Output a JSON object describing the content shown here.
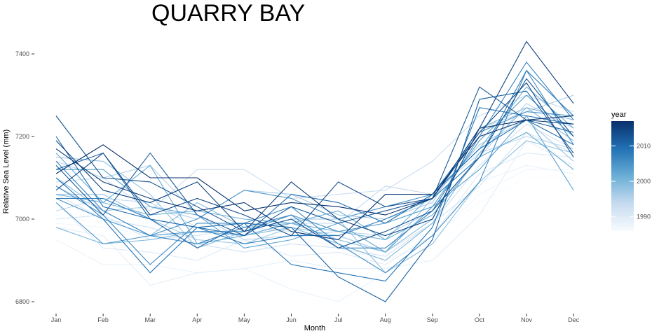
{
  "chart_data": {
    "type": "line",
    "title": "QUARRY BAY",
    "xlabel": "Month",
    "ylabel": "Relative Sea Level (mm)",
    "categories": [
      "Jan",
      "Feb",
      "Mar",
      "Apr",
      "May",
      "Jun",
      "Jul",
      "Aug",
      "Sep",
      "Oct",
      "Nov",
      "Dec"
    ],
    "ylim": [
      6780,
      7440
    ],
    "yticks": [
      6800,
      7000,
      7200,
      7400
    ],
    "legend": {
      "title": "year",
      "placement": "right",
      "range": [
        1986,
        2017
      ],
      "ticks": [
        1990,
        2000,
        2010
      ],
      "colors": [
        "#f7fbff",
        "#c6dbef",
        "#6baed6",
        "#2171b5",
        "#08306b"
      ]
    },
    "series": [
      {
        "year": 1986,
        "values": [
          7010,
          6990,
          6990,
          6980,
          6970,
          6980,
          6960,
          6930,
          6960,
          7040,
          7100,
          7100
        ]
      },
      {
        "year": 1987,
        "values": [
          6990,
          6980,
          6960,
          6960,
          6950,
          6960,
          6930,
          6900,
          6950,
          7060,
          7120,
          7120
        ]
      },
      {
        "year": 1988,
        "values": [
          6950,
          6890,
          6890,
          6870,
          6880,
          6830,
          6800,
          6870,
          6940,
          7090,
          7130,
          7110
        ]
      },
      {
        "year": 1989,
        "values": [
          6980,
          6960,
          6840,
          6870,
          6880,
          6900,
          6880,
          6880,
          6900,
          7010,
          7190,
          7130
        ]
      },
      {
        "year": 1990,
        "values": [
          7040,
          6930,
          6920,
          6900,
          6950,
          6910,
          6920,
          6890,
          6960,
          7110,
          7160,
          7150
        ]
      },
      {
        "year": 1991,
        "values": [
          7000,
          7010,
          6950,
          6960,
          6980,
          6970,
          6950,
          6920,
          6990,
          7080,
          7210,
          7160
        ]
      },
      {
        "year": 1992,
        "values": [
          7060,
          7000,
          6980,
          6940,
          6920,
          6940,
          6930,
          6910,
          6990,
          7130,
          7230,
          7170
        ]
      },
      {
        "year": 1993,
        "values": [
          7090,
          7100,
          7020,
          7120,
          7120,
          7050,
          7060,
          7070,
          7140,
          7250,
          7300,
          7260
        ]
      },
      {
        "year": 1994,
        "values": [
          7020,
          7050,
          7040,
          6980,
          6960,
          6990,
          6990,
          7080,
          7060,
          7160,
          7200,
          7170
        ]
      },
      {
        "year": 1995,
        "values": [
          7140,
          7100,
          7130,
          7010,
          6950,
          6960,
          6970,
          6960,
          7020,
          7150,
          7280,
          7220
        ]
      },
      {
        "year": 1996,
        "values": [
          7080,
          7020,
          7030,
          7000,
          7070,
          7060,
          7010,
          7000,
          7040,
          7220,
          7260,
          7300
        ]
      },
      {
        "year": 1997,
        "values": [
          7060,
          7060,
          7000,
          6950,
          6940,
          6980,
          6960,
          6920,
          7050,
          7180,
          7240,
          7140
        ]
      },
      {
        "year": 1998,
        "values": [
          7150,
          7140,
          7060,
          6930,
          6970,
          7000,
          7000,
          6870,
          6940,
          7090,
          7190,
          7160
        ]
      },
      {
        "year": 1999,
        "values": [
          7100,
          7020,
          6960,
          7040,
          6980,
          6990,
          6950,
          6920,
          7000,
          7220,
          7270,
          7190
        ]
      },
      {
        "year": 2000,
        "values": [
          6980,
          6940,
          6950,
          6970,
          6960,
          6980,
          6940,
          6900,
          6990,
          7160,
          7270,
          7240
        ]
      },
      {
        "year": 2001,
        "values": [
          7060,
          7040,
          7010,
          7020,
          7000,
          6990,
          6970,
          6950,
          7060,
          7170,
          7320,
          7220
        ]
      },
      {
        "year": 2002,
        "values": [
          7160,
          7040,
          7130,
          6940,
          6960,
          6990,
          7020,
          6950,
          7010,
          7150,
          7210,
          7120
        ]
      },
      {
        "year": 2003,
        "values": [
          7120,
          7120,
          7030,
          7010,
          6930,
          6950,
          6990,
          6920,
          7030,
          7120,
          7250,
          7070
        ]
      },
      {
        "year": 2004,
        "values": [
          7040,
          6940,
          6960,
          6970,
          6970,
          7010,
          6970,
          6990,
          7030,
          7190,
          7300,
          7200
        ]
      },
      {
        "year": 2005,
        "values": [
          7050,
          7000,
          6960,
          7000,
          7070,
          7050,
          7000,
          7030,
          7060,
          7210,
          7260,
          7250
        ]
      },
      {
        "year": 2006,
        "values": [
          7080,
          7010,
          6890,
          6990,
          6990,
          7030,
          6940,
          6870,
          6960,
          7090,
          7360,
          7180
        ]
      },
      {
        "year": 2007,
        "values": [
          7140,
          7020,
          6960,
          6940,
          6980,
          7010,
          6930,
          6930,
          7020,
          7200,
          7380,
          7240
        ]
      },
      {
        "year": 2008,
        "values": [
          7050,
          7050,
          7000,
          6980,
          6940,
          6960,
          6960,
          7000,
          7050,
          7150,
          7360,
          7250
        ]
      },
      {
        "year": 2009,
        "values": [
          7100,
          7000,
          6870,
          6980,
          6990,
          6890,
          6870,
          6850,
          6980,
          7270,
          7250,
          7230
        ]
      },
      {
        "year": 2010,
        "values": [
          7200,
          7030,
          7000,
          6980,
          6960,
          7060,
          7040,
          6990,
          7060,
          7170,
          7240,
          7180
        ]
      },
      {
        "year": 2011,
        "values": [
          7120,
          7160,
          7000,
          6930,
          6990,
          6980,
          6860,
          6800,
          6950,
          7290,
          7310,
          7160
        ]
      },
      {
        "year": 2012,
        "values": [
          7130,
          7010,
          7160,
          7010,
          6960,
          7030,
          6990,
          7020,
          7050,
          7320,
          7240,
          7210
        ]
      },
      {
        "year": 2013,
        "values": [
          7250,
          7100,
          7090,
          7030,
          6970,
          7000,
          6930,
          6970,
          7020,
          7150,
          7340,
          7200
        ]
      },
      {
        "year": 2014,
        "values": [
          7070,
          7160,
          7010,
          7050,
          7010,
          6960,
          7090,
          7030,
          7050,
          7210,
          7330,
          7150
        ]
      },
      {
        "year": 2015,
        "values": [
          7190,
          7070,
          7040,
          7090,
          6970,
          7090,
          7000,
          6960,
          7000,
          7220,
          7430,
          7280
        ]
      },
      {
        "year": 2016,
        "values": [
          7170,
          7090,
          7050,
          7020,
          7040,
          6970,
          6950,
          7060,
          7060,
          7200,
          7240,
          7230
        ]
      },
      {
        "year": 2017,
        "values": [
          7110,
          7180,
          7100,
          7100,
          7020,
          7040,
          7030,
          7010,
          7050,
          7220,
          7240,
          7250
        ]
      }
    ]
  }
}
